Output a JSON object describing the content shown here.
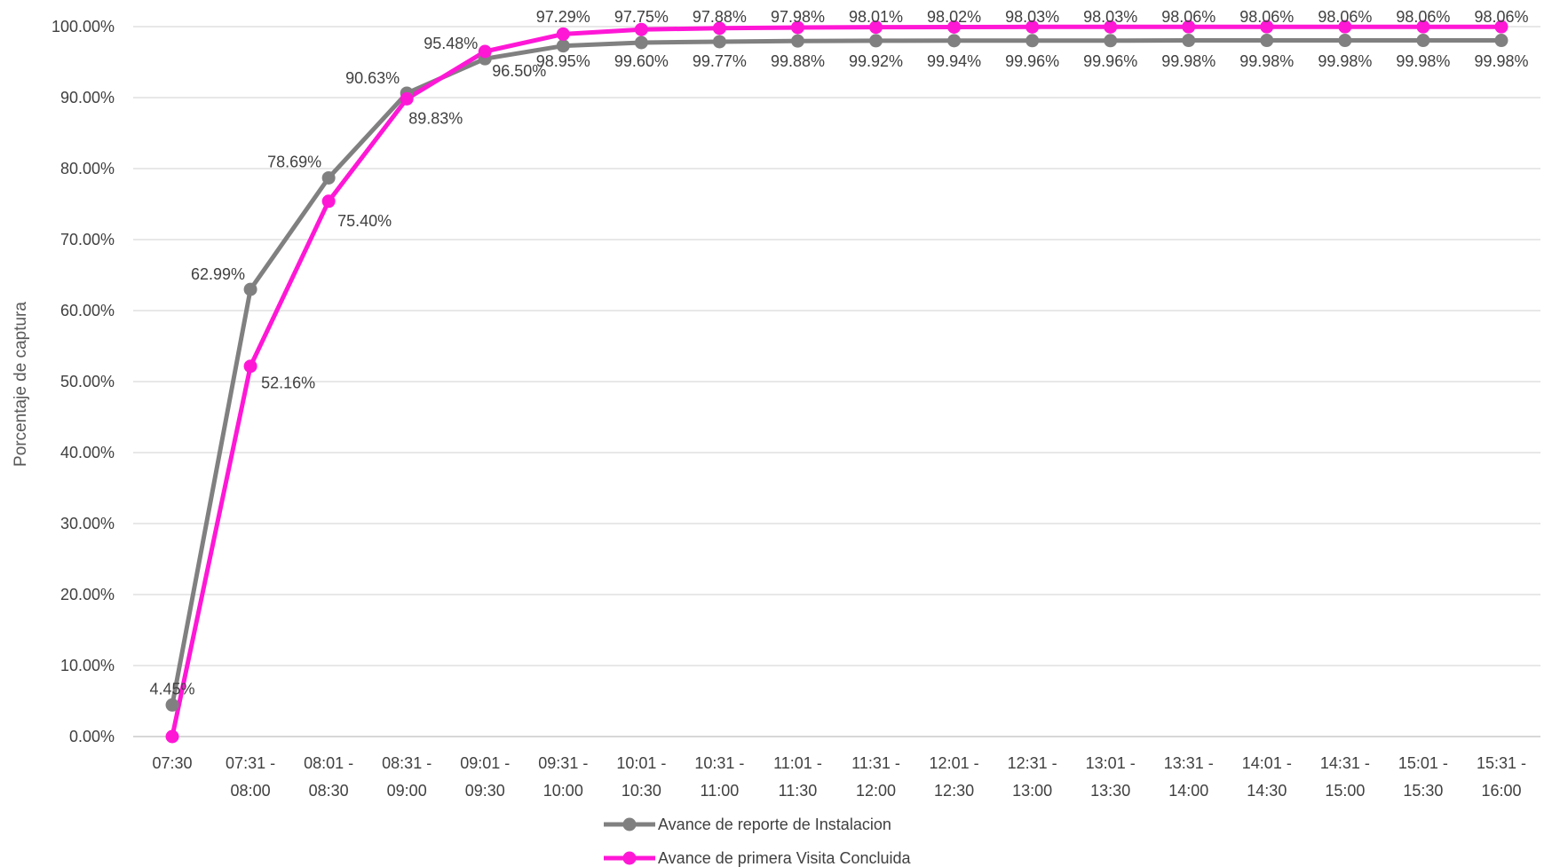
{
  "chart_data": {
    "type": "line",
    "title": "",
    "xlabel": "",
    "ylabel": "Porcentaje de captura",
    "ylim": [
      0,
      100
    ],
    "yticks": [
      "0.00%",
      "10.00%",
      "20.00%",
      "30.00%",
      "40.00%",
      "50.00%",
      "60.00%",
      "70.00%",
      "80.00%",
      "90.00%",
      "100.00%"
    ],
    "grid": true,
    "legend_position": "bottom",
    "categories": [
      [
        "07:30"
      ],
      [
        "07:31 -",
        "08:00"
      ],
      [
        "08:01 -",
        "08:30"
      ],
      [
        "08:31 -",
        "09:00"
      ],
      [
        "09:01 -",
        "09:30"
      ],
      [
        "09:31 -",
        "10:00"
      ],
      [
        "10:01 -",
        "10:30"
      ],
      [
        "10:31 -",
        "11:00"
      ],
      [
        "11:01 -",
        "11:30"
      ],
      [
        "11:31 -",
        "12:00"
      ],
      [
        "12:01 -",
        "12:30"
      ],
      [
        "12:31 -",
        "13:00"
      ],
      [
        "13:01 -",
        "13:30"
      ],
      [
        "13:31 -",
        "14:00"
      ],
      [
        "14:01 -",
        "14:30"
      ],
      [
        "14:31 -",
        "15:00"
      ],
      [
        "15:01 -",
        "15:30"
      ],
      [
        "15:31 -",
        "16:00"
      ]
    ],
    "series": [
      {
        "name": "Avance de reporte de Instalacion",
        "color": "#808080",
        "values": [
          4.45,
          62.99,
          78.69,
          90.63,
          95.48,
          97.29,
          97.75,
          97.88,
          97.98,
          98.01,
          98.02,
          98.03,
          98.03,
          98.06,
          98.06,
          98.06,
          98.06,
          98.06
        ],
        "labels": [
          "4.45%",
          "62.99%",
          "78.69%",
          "90.63%",
          "95.48%",
          "97.29%",
          "97.75%",
          "97.88%",
          "97.98%",
          "98.01%",
          "98.02%",
          "98.03%",
          "98.03%",
          "98.06%",
          "98.06%",
          "98.06%",
          "98.06%",
          "98.06%"
        ]
      },
      {
        "name": "Avance de primera Visita Concluida",
        "color": "#FF17D6",
        "values": [
          0.0,
          52.16,
          75.4,
          89.83,
          96.5,
          98.95,
          99.6,
          99.77,
          99.88,
          99.92,
          99.94,
          99.96,
          99.96,
          99.98,
          99.98,
          99.98,
          99.98,
          99.98
        ],
        "labels": [
          "",
          "52.16%",
          "75.40%",
          "89.83%",
          "96.50%",
          "98.95%",
          "99.60%",
          "99.77%",
          "99.88%",
          "99.92%",
          "99.94%",
          "99.96%",
          "99.96%",
          "99.98%",
          "99.98%",
          "99.98%",
          "99.98%",
          "99.98%"
        ]
      }
    ]
  }
}
